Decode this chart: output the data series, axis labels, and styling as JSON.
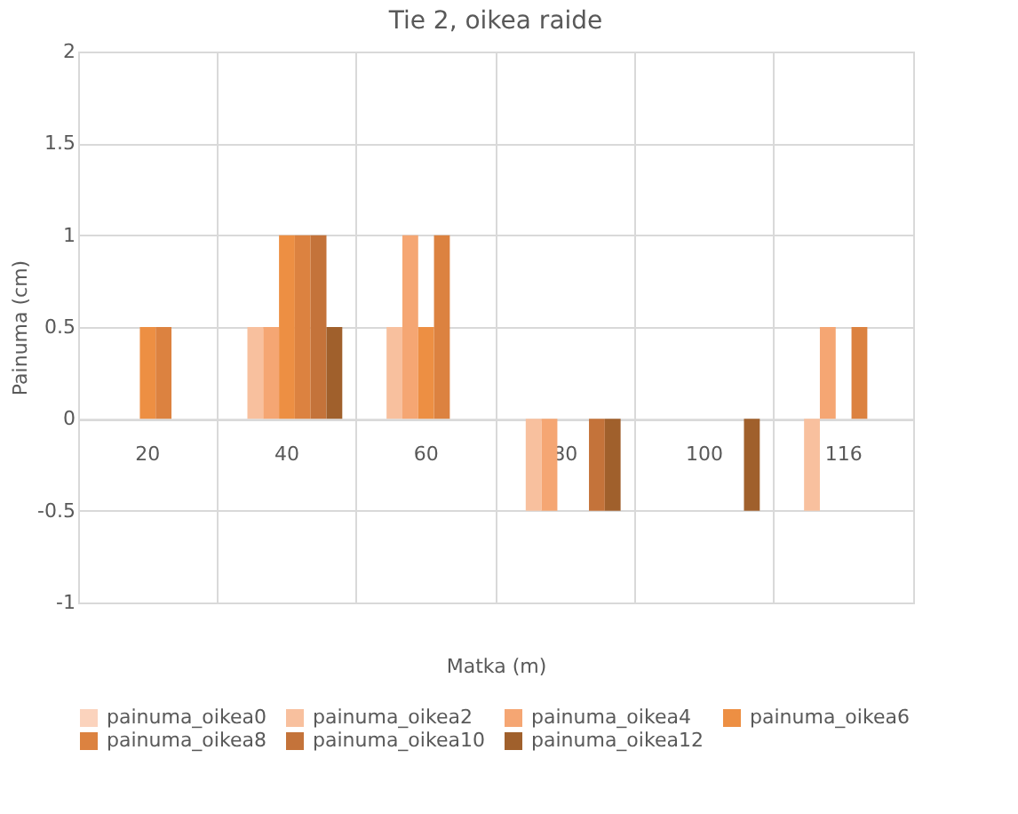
{
  "chart_data": {
    "type": "bar",
    "title": "Tie 2, oikea raide",
    "xlabel": "Matka (m)",
    "ylabel": "Painuma (cm)",
    "categories": [
      "20",
      "40",
      "60",
      "80",
      "100",
      "116"
    ],
    "series": [
      {
        "name": "painuma_oikea0",
        "color": "#fbd3bd",
        "values": [
          0,
          0,
          0,
          0,
          0,
          0
        ]
      },
      {
        "name": "painuma_oikea2",
        "color": "#f8c09e",
        "values": [
          0,
          0.5,
          0.5,
          -0.5,
          0,
          -0.5
        ]
      },
      {
        "name": "painuma_oikea4",
        "color": "#f5a673",
        "values": [
          0,
          0.5,
          1,
          -0.5,
          0,
          0.5
        ]
      },
      {
        "name": "painuma_oikea6",
        "color": "#ed8f43",
        "values": [
          0.5,
          1,
          0.5,
          0,
          0,
          0
        ]
      },
      {
        "name": "painuma_oikea8",
        "color": "#dc8240",
        "values": [
          0.5,
          1,
          1,
          0,
          0,
          0.5
        ]
      },
      {
        "name": "painuma_oikea10",
        "color": "#c4733a",
        "values": [
          0,
          1,
          0,
          -0.5,
          0,
          0
        ]
      },
      {
        "name": "painuma_oikea12",
        "color": "#a0602c",
        "values": [
          0,
          0.5,
          0,
          -0.5,
          -0.5,
          0
        ]
      }
    ],
    "ylim": [
      -1,
      2
    ],
    "yticks": [
      -1,
      -0.5,
      0,
      0.5,
      1,
      1.5,
      2
    ],
    "grid": true,
    "legend": "bottom"
  }
}
